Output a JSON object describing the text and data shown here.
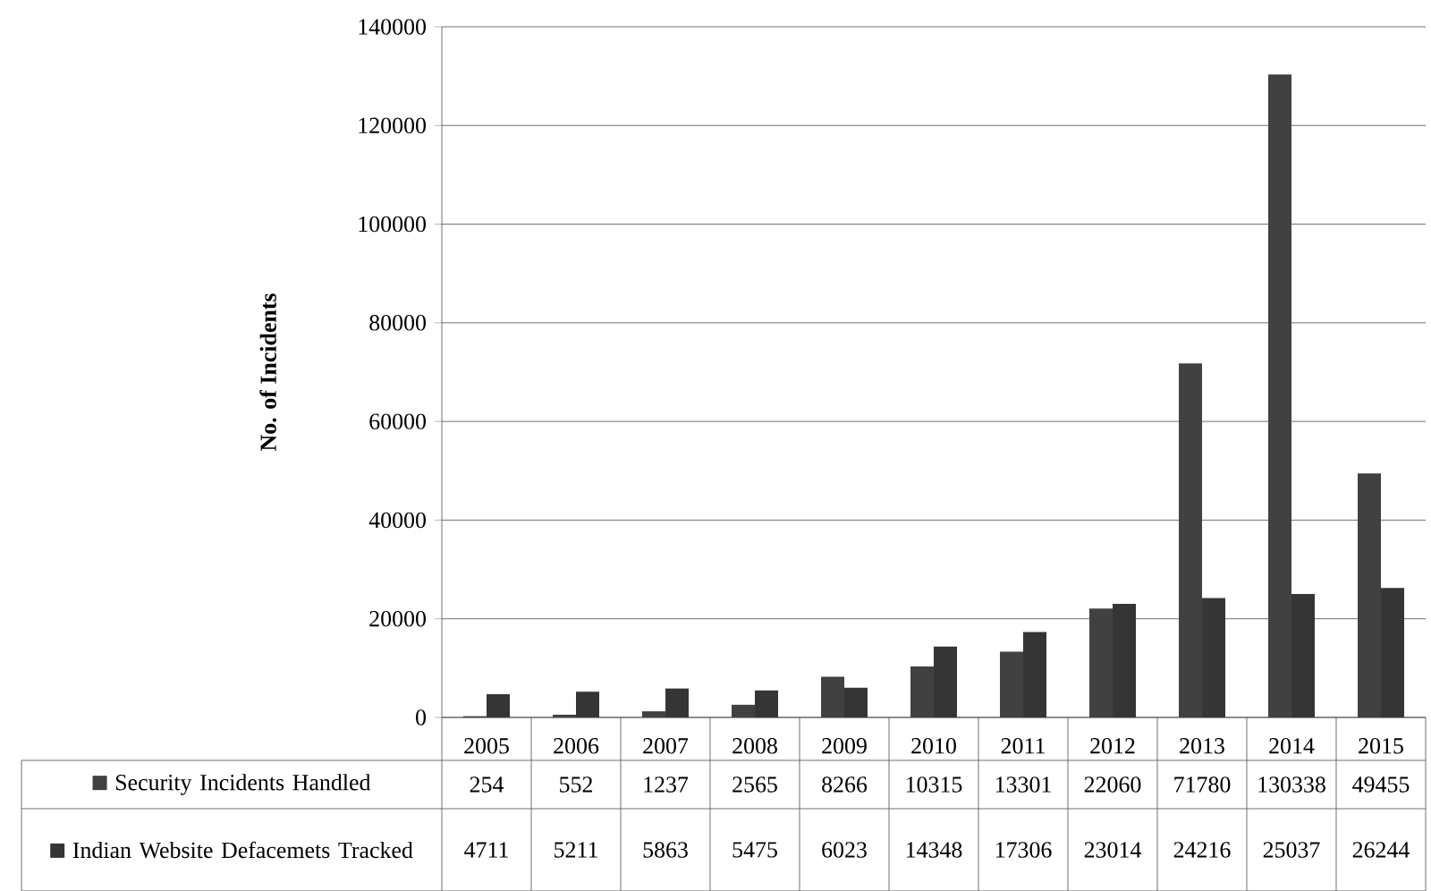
{
  "chart_data": {
    "type": "bar",
    "ylabel": "No. of Incidents",
    "categories": [
      "2005",
      "2006",
      "2007",
      "2008",
      "2009",
      "2010",
      "2011",
      "2012",
      "2013",
      "2014",
      "2015"
    ],
    "series": [
      {
        "name": "Security Incidents Handled",
        "color": "#414141",
        "values": [
          254,
          552,
          1237,
          2565,
          8266,
          10315,
          13301,
          22060,
          71780,
          130338,
          49455
        ]
      },
      {
        "name": "Indian Website Defacemets Tracked",
        "color": "#353535",
        "values": [
          4711,
          5211,
          5863,
          5475,
          6023,
          14348,
          17306,
          23014,
          24216,
          25037,
          26244
        ]
      }
    ],
    "ylim": [
      0,
      140000
    ],
    "yticks": [
      0,
      20000,
      40000,
      60000,
      80000,
      100000,
      120000,
      140000
    ],
    "grid": "y",
    "legend": "bottom left",
    "data_labels": true
  }
}
